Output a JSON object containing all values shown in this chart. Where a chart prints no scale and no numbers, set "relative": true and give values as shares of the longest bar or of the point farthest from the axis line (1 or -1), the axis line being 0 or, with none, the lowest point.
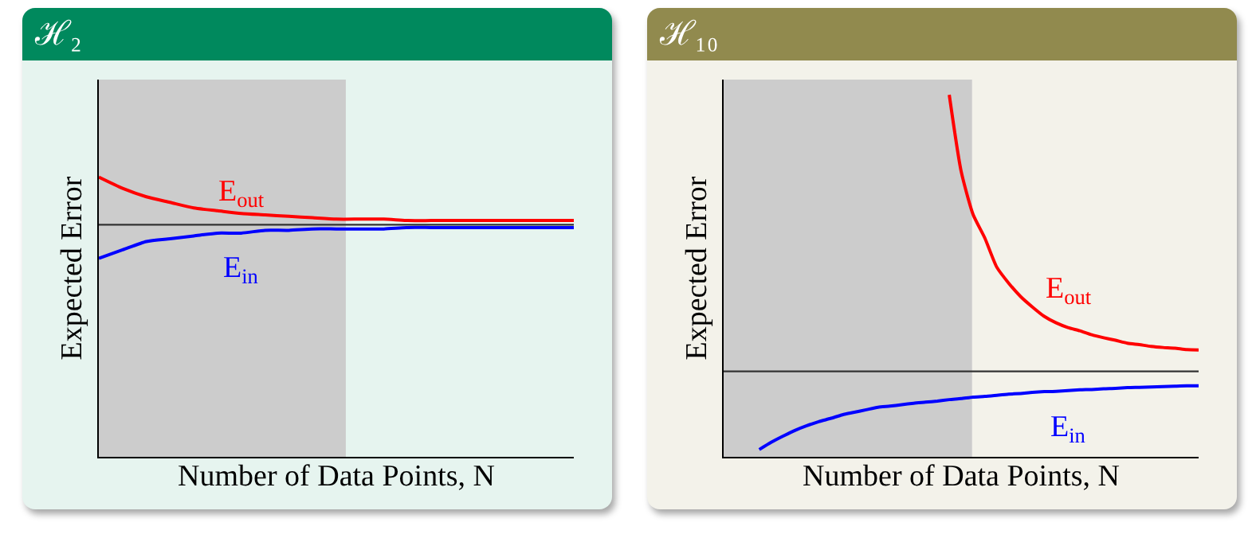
{
  "chart_data": [
    {
      "type": "line",
      "title": "ℋ₂",
      "xlabel": "Number of Data Points, N",
      "ylabel": "Expected Error",
      "relative": true,
      "categories": [
        null,
        null,
        null,
        null,
        null,
        null,
        null,
        null,
        null,
        null,
        null,
        null,
        null,
        null,
        null,
        null,
        null,
        null,
        null,
        null,
        null
      ],
      "series": [
        {
          "name": "E$_{out}$",
          "color": "#ff0000",
          "values": [
            1,
            0.96,
            0.93,
            0.91,
            0.89,
            0.88,
            0.87,
            0.865,
            0.86,
            0.855,
            0.85,
            0.85,
            0.85,
            0.845,
            0.845,
            0.845,
            0.845,
            0.845,
            0.845,
            0.845,
            0.845
          ]
        },
        {
          "name": "E$_{in}$",
          "color": "#0000ff",
          "values": [
            0.71,
            0.74,
            0.77,
            0.78,
            0.79,
            0.8,
            0.8,
            0.81,
            0.81,
            0.815,
            0.815,
            0.815,
            0.815,
            0.82,
            0.82,
            0.82,
            0.82,
            0.82,
            0.82,
            0.82,
            0.82
          ]
        }
      ],
      "ref_lines": [
        {
          "axis": "y",
          "value": 0.83,
          "color": "#333333"
        }
      ]
    },
    {
      "type": "line",
      "title": "ℋ₁₀",
      "xlabel": "Number of Data Points, N",
      "ylabel": "Expected Error",
      "relative": true,
      "categories": [
        null,
        null,
        null,
        null,
        null,
        null,
        null,
        null,
        null,
        null,
        null,
        null,
        null,
        null,
        null,
        null,
        null,
        null,
        null,
        null,
        null,
        null,
        null,
        null,
        null,
        null,
        null,
        null,
        null,
        null,
        null,
        null,
        null,
        null,
        null,
        null,
        null,
        null,
        null,
        null,
        null
      ],
      "series": [
        {
          "name": "E$_{out}$",
          "color": "#ff0000",
          "values": [
            null,
            null,
            null,
            null,
            null,
            null,
            null,
            null,
            null,
            null,
            null,
            null,
            null,
            null,
            null,
            null,
            null,
            null,
            null,
            1,
            0.789,
            0.67,
            0.604,
            0.524,
            0.48,
            0.443,
            0.414,
            0.388,
            0.37,
            0.357,
            0.348,
            0.337,
            0.329,
            0.322,
            0.314,
            0.31,
            0.305,
            0.302,
            0.3,
            0.296,
            0.295
          ]
        },
        {
          "name": "E$_{in}$",
          "color": "#0000ff",
          "values": [
            null,
            null,
            null,
            0.02,
            0.04,
            0.057,
            0.073,
            0.086,
            0.097,
            0.106,
            0.116,
            0.123,
            0.13,
            0.137,
            0.14,
            0.144,
            0.148,
            0.151,
            0.154,
            0.158,
            0.161,
            0.165,
            0.167,
            0.17,
            0.173,
            0.175,
            0.178,
            0.18,
            0.181,
            0.183,
            0.185,
            0.186,
            0.188,
            0.189,
            0.191,
            0.192,
            0.193,
            0.194,
            0.195,
            0.196,
            0.196
          ]
        }
      ],
      "ref_lines": [
        {
          "axis": "y",
          "value": 0.236,
          "color": "#333333"
        }
      ]
    }
  ]
}
